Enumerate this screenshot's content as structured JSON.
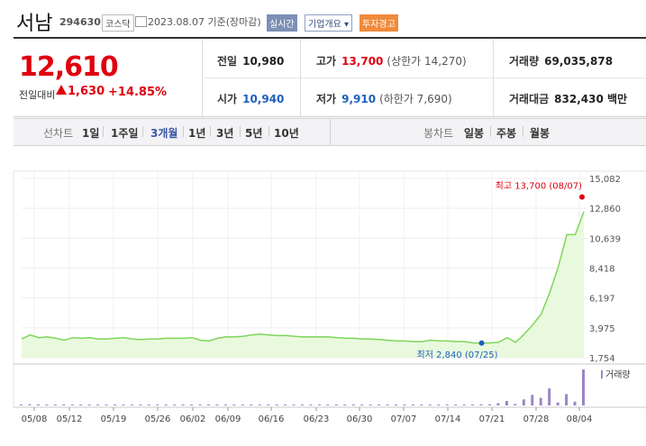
{
  "header": {
    "name": "서남",
    "code": "294630",
    "market": "코스닥",
    "date": "2023.08.07",
    "date_basis": "기준(장마감)",
    "realtime": "실시간",
    "corp_overview": "기업개요",
    "warning": "투자경고"
  },
  "quote": {
    "price": "12,610",
    "change_label": "전일대비",
    "change": "1,630",
    "change_pct": "+14.85%",
    "prev_label": "전일",
    "prev": "10,980",
    "open_label": "시가",
    "open": "10,940",
    "high_label": "고가",
    "high": "13,700",
    "upper_limit": "(상한가 14,270)",
    "low_label": "저가",
    "low": "9,910",
    "lower_limit": "(하한가 7,690)",
    "volume_label": "거래량",
    "volume": "69,035,878",
    "amount_label": "거래대금",
    "amount": "832,430 백만",
    "colors": {
      "up": "#e0000f",
      "down": "#1f5fc0"
    }
  },
  "tabs": {
    "line_label": "선차트",
    "periods": [
      "1일",
      "1주일",
      "3개월",
      "1년",
      "3년",
      "5년",
      "10년"
    ],
    "selected_period": "3개월",
    "candle_label": "봉차트",
    "candles": [
      "일봉",
      "주봉",
      "월봉"
    ]
  },
  "chart_data": {
    "type": "area",
    "y_ticks": [
      "15,082",
      "12,860",
      "10,639",
      "8,418",
      "6,197",
      "3,975",
      "1,754"
    ],
    "ylim": [
      1754,
      15082
    ],
    "x_ticks": [
      "05/08",
      "05/12",
      "05/19",
      "05/26",
      "06/02",
      "06/09",
      "06/16",
      "06/23",
      "06/30",
      "07/07",
      "07/14",
      "07/21",
      "07/28",
      "08/04"
    ],
    "series": [
      {
        "values": [
          3150,
          3450,
          3250,
          3300,
          3200,
          3050,
          3250,
          3200,
          3250,
          3150,
          3150,
          3200,
          3250,
          3150,
          3100,
          3150,
          3150,
          3200,
          3200,
          3200,
          3250,
          3050,
          3000,
          3200,
          3300,
          3300,
          3350,
          3450,
          3500,
          3450,
          3400,
          3400,
          3350,
          3300,
          3300,
          3300,
          3300,
          3250,
          3200,
          3200,
          3150,
          3150,
          3100,
          3050,
          3000,
          3000,
          2950,
          2950,
          3050,
          3000,
          3000,
          2950,
          2950,
          2850,
          2840,
          2850,
          2900,
          3250,
          2900,
          3500,
          4200,
          5000,
          6600,
          8500,
          10900,
          10900,
          12610
        ]
      }
    ],
    "volume": [
      0.02,
      0.03,
      0.03,
      0.02,
      0.02,
      0.02,
      0.02,
      0.02,
      0.02,
      0.02,
      0.02,
      0.02,
      0.02,
      0.02,
      0.02,
      0.02,
      0.02,
      0.02,
      0.02,
      0.02,
      0.02,
      0.02,
      0.02,
      0.02,
      0.02,
      0.02,
      0.02,
      0.02,
      0.02,
      0.02,
      0.02,
      0.02,
      0.02,
      0.02,
      0.02,
      0.02,
      0.02,
      0.02,
      0.02,
      0.02,
      0.02,
      0.02,
      0.02,
      0.02,
      0.02,
      0.02,
      0.02,
      0.02,
      0.02,
      0.02,
      0.02,
      0.02,
      0.02,
      0.02,
      0.03,
      0.03,
      0.06,
      0.12,
      0.04,
      0.16,
      0.28,
      0.2,
      0.45,
      0.08,
      0.3,
      0.1,
      0.95
    ],
    "volume_label": "거래량",
    "max_label": "최고 13,700 (08/07)",
    "max_value": 13700,
    "min_label": "최저 2,840 (07/25)",
    "min_value": 2840,
    "colors": {
      "line": "#7ed65a",
      "fill": "#e9f9de",
      "max": "#e0000f",
      "min": "#1f5fc0",
      "volume": "#9b86c6"
    }
  }
}
